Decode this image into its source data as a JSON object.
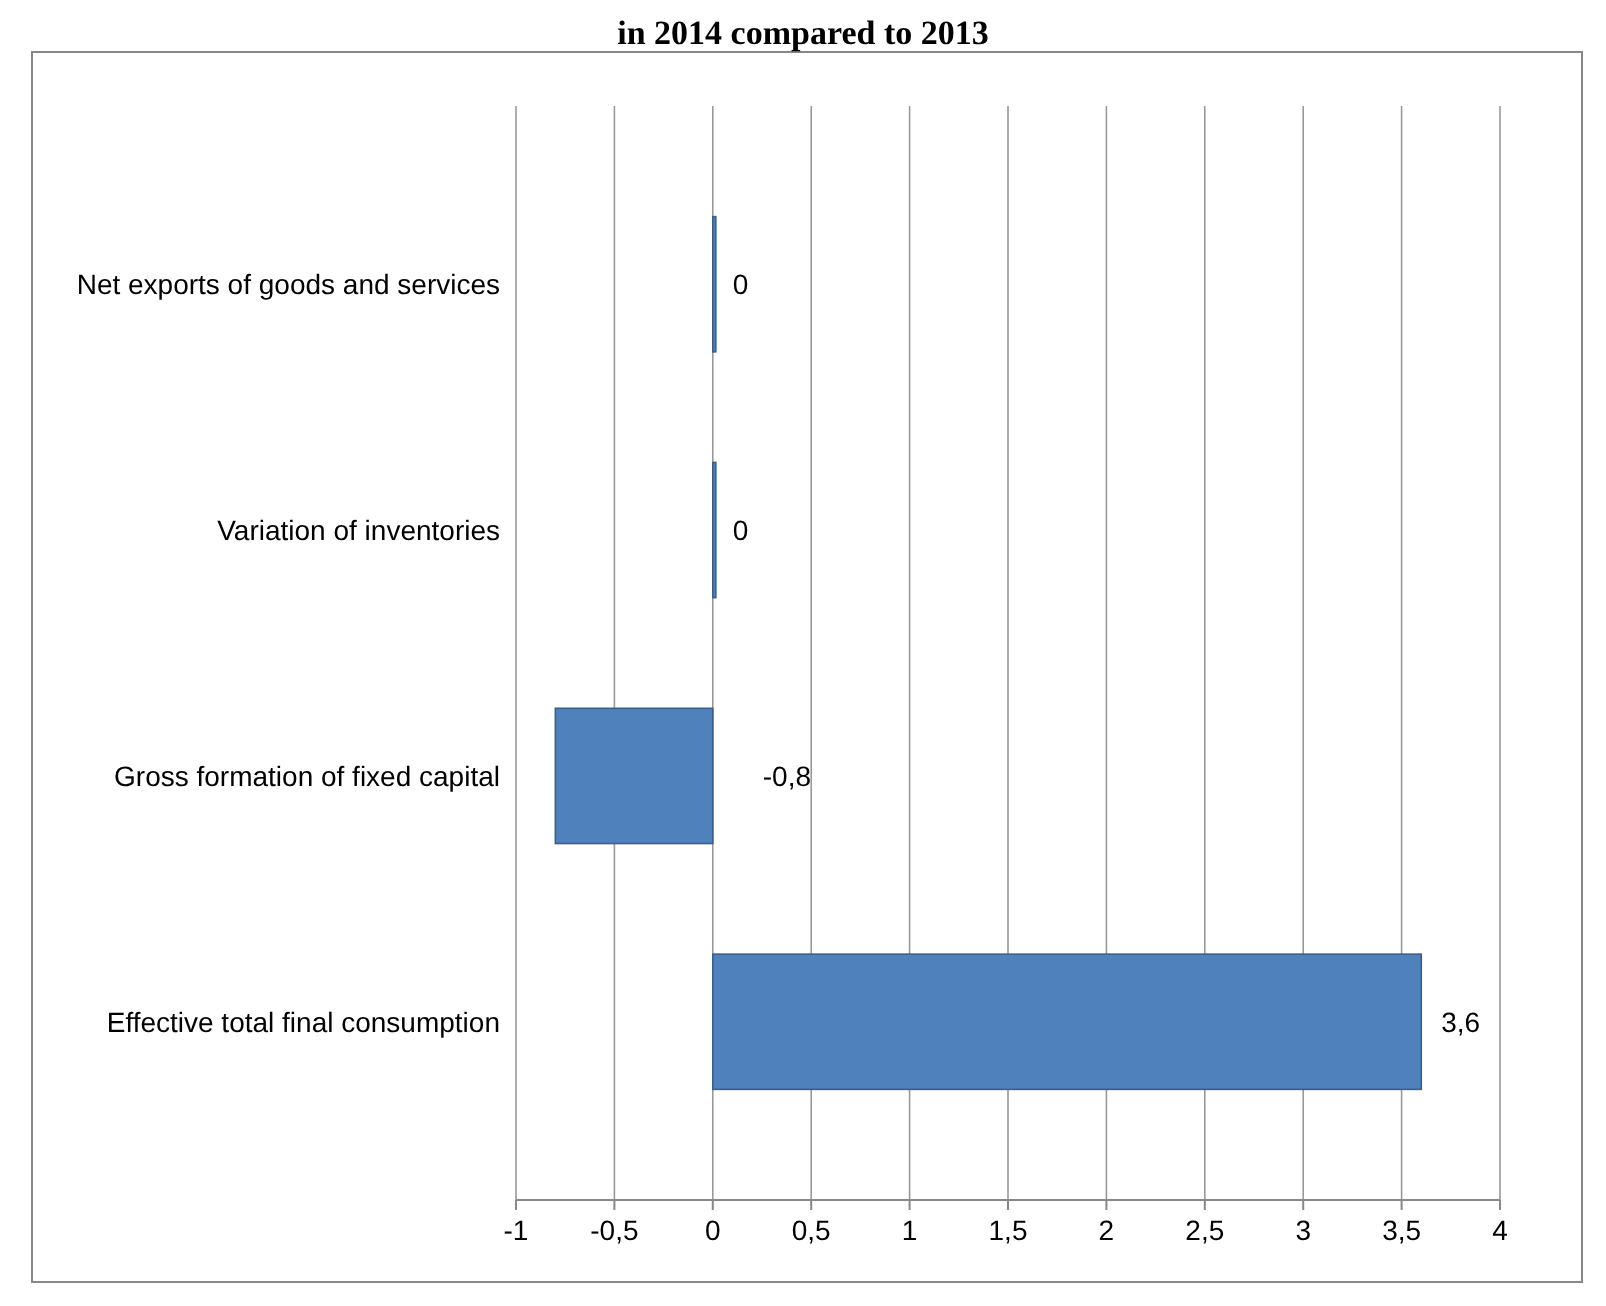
{
  "chart_data": {
    "type": "bar",
    "orientation": "horizontal",
    "title": "in 2014 compared to 2013",
    "categories": [
      "Net exports of goods and services",
      "Variation of inventories",
      "Gross formation of fixed capital",
      "Effective total final consumption"
    ],
    "values": [
      0,
      0,
      -0.8,
      3.6
    ],
    "color": "#4f81bd",
    "value_labels": [
      "0",
      "0",
      "-0,8",
      "3,6"
    ],
    "xlim": [
      -1,
      4
    ],
    "xticks": [
      {
        "value": -1,
        "label": "-1"
      },
      {
        "value": -0.5,
        "label": "-0,5"
      },
      {
        "value": 0,
        "label": "0"
      },
      {
        "value": 0.5,
        "label": "0,5"
      },
      {
        "value": 1,
        "label": "1"
      },
      {
        "value": 1.5,
        "label": "1,5"
      },
      {
        "value": 2,
        "label": "2"
      },
      {
        "value": 2.5,
        "label": "2,5"
      },
      {
        "value": 3,
        "label": "3"
      },
      {
        "value": 3.5,
        "label": "3,5"
      },
      {
        "value": 4,
        "label": "4"
      }
    ],
    "grid": "x"
  }
}
